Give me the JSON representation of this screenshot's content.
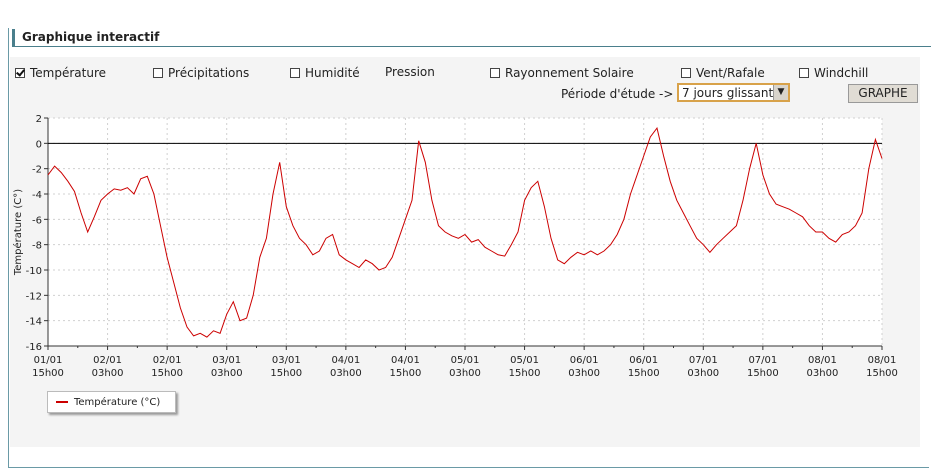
{
  "header": {
    "title": "Graphique interactif"
  },
  "controls": {
    "checkboxes": [
      {
        "label": "Température",
        "checked": true
      },
      {
        "label": "Précipitations",
        "checked": false
      },
      {
        "label": "Humidité",
        "checked": false
      },
      {
        "label": "Pression"
      },
      {
        "label": "Rayonnement Solaire",
        "checked": false
      },
      {
        "label": "Vent/Rafale",
        "checked": false
      },
      {
        "label": "Windchill",
        "checked": false
      }
    ],
    "period_label": "Période d'étude ->",
    "period_value": "7 jours glissant",
    "graph_button": "GRAPHE"
  },
  "chart_data": {
    "type": "line",
    "title": "",
    "xlabel": "",
    "ylabel": "Température (C°)",
    "ylim": [
      -16,
      2
    ],
    "yticks": [
      2,
      0,
      -2,
      -4,
      -6,
      -8,
      -10,
      -12,
      -14,
      -16
    ],
    "grid": true,
    "legend": "bottom-left",
    "color": "#cc0000",
    "x_ticks": [
      [
        "01/01",
        "15h00"
      ],
      [
        "02/01",
        "03h00"
      ],
      [
        "02/01",
        "15h00"
      ],
      [
        "03/01",
        "03h00"
      ],
      [
        "03/01",
        "15h00"
      ],
      [
        "04/01",
        "03h00"
      ],
      [
        "04/01",
        "15h00"
      ],
      [
        "05/01",
        "03h00"
      ],
      [
        "05/01",
        "15h00"
      ],
      [
        "06/01",
        "03h00"
      ],
      [
        "06/01",
        "15h00"
      ],
      [
        "07/01",
        "03h00"
      ],
      [
        "07/01",
        "15h00"
      ],
      [
        "08/01",
        "03h00"
      ],
      [
        "08/01",
        "15h00"
      ]
    ],
    "series": [
      {
        "name": "Température (°C)",
        "values": [
          -2.5,
          -1.8,
          -2.3,
          -3.0,
          -3.8,
          -5.5,
          -7.0,
          -5.8,
          -4.5,
          -4.0,
          -3.6,
          -3.7,
          -3.5,
          -4.0,
          -2.8,
          -2.6,
          -4.0,
          -6.5,
          -9.0,
          -11.0,
          -13.0,
          -14.5,
          -15.2,
          -15.0,
          -15.3,
          -14.8,
          -15.0,
          -13.5,
          -12.5,
          -14.0,
          -13.8,
          -12.0,
          -9.0,
          -7.5,
          -4.0,
          -1.5,
          -5.0,
          -6.5,
          -7.5,
          -8.0,
          -8.8,
          -8.5,
          -7.5,
          -7.2,
          -8.8,
          -9.2,
          -9.5,
          -9.8,
          -9.2,
          -9.5,
          -10.0,
          -9.8,
          -9.0,
          -7.5,
          -6.0,
          -4.5,
          0.2,
          -1.5,
          -4.5,
          -6.5,
          -7.0,
          -7.3,
          -7.5,
          -7.2,
          -7.8,
          -7.6,
          -8.2,
          -8.5,
          -8.8,
          -8.9,
          -8.0,
          -7.0,
          -4.5,
          -3.5,
          -3.0,
          -5.0,
          -7.5,
          -9.2,
          -9.5,
          -9.0,
          -8.6,
          -8.8,
          -8.5,
          -8.8,
          -8.5,
          -8.0,
          -7.2,
          -6.0,
          -4.0,
          -2.5,
          -1.0,
          0.5,
          1.2,
          -1.0,
          -3.0,
          -4.5,
          -5.5,
          -6.5,
          -7.5,
          -8.0,
          -8.6,
          -8.0,
          -7.5,
          -7.0,
          -6.5,
          -4.5,
          -2.0,
          0.0,
          -2.5,
          -4.0,
          -4.8,
          -5.0,
          -5.2,
          -5.5,
          -5.8,
          -6.5,
          -7.0,
          -7.0,
          -7.5,
          -7.8,
          -7.2,
          -7.0,
          -6.5,
          -5.5,
          -2.0,
          0.3,
          -1.2
        ]
      }
    ]
  }
}
